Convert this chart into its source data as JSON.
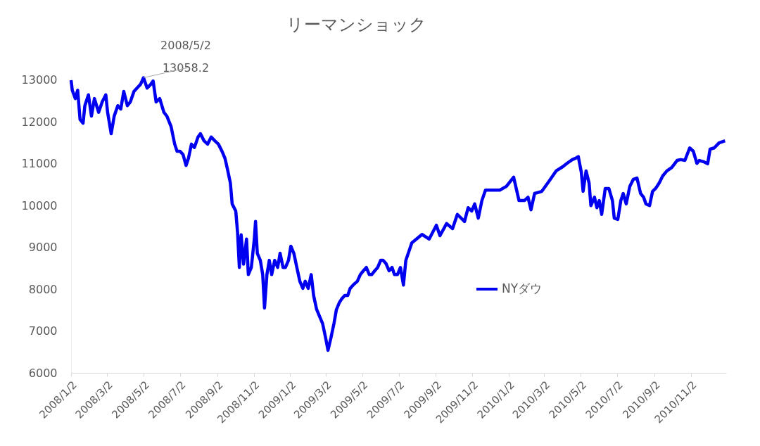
{
  "chart_data": {
    "type": "line",
    "title": "リーマンショック",
    "x": [
      "2008-01-02",
      "2008-01-04",
      "2008-01-09",
      "2008-01-13",
      "2008-01-17",
      "2008-01-22",
      "2008-01-25",
      "2008-01-31",
      "2008-02-05",
      "2008-02-10",
      "2008-02-17",
      "2008-02-23",
      "2008-02-29",
      "2008-03-03",
      "2008-03-09",
      "2008-03-14",
      "2008-03-20",
      "2008-03-25",
      "2008-03-30",
      "2008-04-05",
      "2008-04-10",
      "2008-04-16",
      "2008-04-21",
      "2008-04-27",
      "2008-05-02",
      "2008-05-08",
      "2008-05-14",
      "2008-05-18",
      "2008-05-23",
      "2008-05-29",
      "2008-06-05",
      "2008-06-10",
      "2008-06-17",
      "2008-06-23",
      "2008-06-27",
      "2008-07-02",
      "2008-07-07",
      "2008-07-12",
      "2008-07-16",
      "2008-07-21",
      "2008-07-26",
      "2008-08-01",
      "2008-08-05",
      "2008-08-11",
      "2008-08-17",
      "2008-08-23",
      "2008-08-29",
      "2008-09-04",
      "2008-09-10",
      "2008-09-15",
      "2008-09-19",
      "2008-09-24",
      "2008-09-27",
      "2008-10-03",
      "2008-10-06",
      "2008-10-09",
      "2008-10-12",
      "2008-10-16",
      "2008-10-21",
      "2008-10-24",
      "2008-10-29",
      "2008-11-03",
      "2008-11-05",
      "2008-11-08",
      "2008-11-13",
      "2008-11-17",
      "2008-11-20",
      "2008-11-24",
      "2008-11-28",
      "2008-12-02",
      "2008-12-07",
      "2008-12-12",
      "2008-12-16",
      "2008-12-21",
      "2008-12-25",
      "2008-12-30",
      "2009-01-03",
      "2009-01-08",
      "2009-01-13",
      "2009-01-18",
      "2009-01-23",
      "2009-01-27",
      "2009-02-01",
      "2009-02-06",
      "2009-02-10",
      "2009-02-15",
      "2009-02-20",
      "2009-02-25",
      "2009-03-02",
      "2009-03-06",
      "2009-03-11",
      "2009-03-16",
      "2009-03-20",
      "2009-03-25",
      "2009-03-29",
      "2009-04-03",
      "2009-04-08",
      "2009-04-12",
      "2009-04-17",
      "2009-04-24",
      "2009-04-29",
      "2009-05-04",
      "2009-05-09",
      "2009-05-14",
      "2009-05-18",
      "2009-05-23",
      "2009-05-28",
      "2009-06-02",
      "2009-06-06",
      "2009-06-11",
      "2009-06-16",
      "2009-06-21",
      "2009-06-25",
      "2009-06-30",
      "2009-07-05",
      "2009-07-10",
      "2009-07-14",
      "2009-07-24",
      "2009-08-10",
      "2009-08-22",
      "2009-09-03",
      "2009-09-09",
      "2009-09-20",
      "2009-09-30",
      "2009-10-08",
      "2009-10-20",
      "2009-10-26",
      "2009-11-01",
      "2009-11-06",
      "2009-11-12",
      "2009-11-18",
      "2009-11-24",
      "2009-12-06",
      "2009-12-18",
      "2009-12-29",
      "2010-01-10",
      "2010-01-19",
      "2010-01-28",
      "2010-02-03",
      "2010-02-08",
      "2010-02-14",
      "2010-02-26",
      "2010-03-10",
      "2010-03-22",
      "2010-04-02",
      "2010-04-09",
      "2010-04-18",
      "2010-04-23",
      "2010-04-28",
      "2010-05-03",
      "2010-05-06",
      "2010-05-11",
      "2010-05-16",
      "2010-05-19",
      "2010-05-25",
      "2010-05-29",
      "2010-06-02",
      "2010-06-06",
      "2010-06-12",
      "2010-06-18",
      "2010-06-24",
      "2010-06-27",
      "2010-07-03",
      "2010-07-08",
      "2010-07-12",
      "2010-07-17",
      "2010-07-23",
      "2010-07-29",
      "2010-08-04",
      "2010-08-10",
      "2010-08-15",
      "2010-08-19",
      "2010-08-25",
      "2010-08-30",
      "2010-09-04",
      "2010-09-10",
      "2010-09-16",
      "2010-09-23",
      "2010-10-01",
      "2010-10-10",
      "2010-10-16",
      "2010-10-23",
      "2010-10-31",
      "2010-11-06",
      "2010-11-12",
      "2010-11-16",
      "2010-11-23",
      "2010-11-30",
      "2010-12-04",
      "2010-12-11",
      "2010-12-19",
      "2010-12-29"
    ],
    "series": [
      {
        "name": "NYダウ",
        "color": "#0000f0",
        "values": [
          13000,
          12760,
          12560,
          12760,
          12060,
          11970,
          12390,
          12650,
          12140,
          12560,
          12230,
          12480,
          12650,
          12230,
          11720,
          12140,
          12390,
          12310,
          12730,
          12390,
          12480,
          12730,
          12810,
          12900,
          13058.2,
          12810,
          12900,
          12980,
          12480,
          12560,
          12230,
          12140,
          11890,
          11470,
          11300,
          11300,
          11220,
          10960,
          11130,
          11470,
          11390,
          11640,
          11720,
          11550,
          11470,
          11640,
          11550,
          11470,
          11300,
          11130,
          10880,
          10540,
          10040,
          9870,
          9360,
          8520,
          9300,
          8600,
          9200,
          8350,
          8520,
          9200,
          9620,
          8860,
          8690,
          8350,
          7550,
          8350,
          8690,
          8350,
          8690,
          8520,
          8860,
          8520,
          8520,
          8690,
          9030,
          8860,
          8520,
          8190,
          8020,
          8190,
          8020,
          8350,
          7850,
          7520,
          7350,
          7180,
          6840,
          6540,
          6840,
          7180,
          7510,
          7680,
          7770,
          7850,
          7850,
          8020,
          8100,
          8190,
          8350,
          8440,
          8520,
          8350,
          8350,
          8440,
          8520,
          8690,
          8690,
          8610,
          8440,
          8520,
          8350,
          8350,
          8520,
          8100,
          8690,
          9110,
          9310,
          9200,
          9530,
          9280,
          9570,
          9450,
          9790,
          9620,
          9950,
          9870,
          10040,
          9700,
          10120,
          10370,
          10370,
          10370,
          10460,
          10680,
          10120,
          10120,
          10200,
          9900,
          10290,
          10340,
          10580,
          10830,
          10930,
          11010,
          11100,
          11130,
          11170,
          10800,
          10340,
          10830,
          10540,
          10000,
          10200,
          9950,
          10120,
          9790,
          10410,
          10410,
          10120,
          9700,
          9670,
          10120,
          10290,
          10040,
          10460,
          10630,
          10660,
          10290,
          10200,
          10040,
          10000,
          10340,
          10410,
          10540,
          10710,
          10830,
          10910,
          11080,
          11100,
          11080,
          11380,
          11300,
          11010,
          11080,
          11050,
          11000,
          11350,
          11380,
          11500,
          11550
        ]
      }
    ],
    "xlim": [
      "2008-01-02",
      "2010-12-31"
    ],
    "xticks": [
      {
        "value": "2008-01-02",
        "label": "2008/1/2"
      },
      {
        "value": "2008-03-02",
        "label": "2008/3/2"
      },
      {
        "value": "2008-05-02",
        "label": "2008/5/2"
      },
      {
        "value": "2008-07-02",
        "label": "2008/7/2"
      },
      {
        "value": "2008-09-02",
        "label": "2008/9/2"
      },
      {
        "value": "2008-11-02",
        "label": "2008/11/2"
      },
      {
        "value": "2009-01-02",
        "label": "2009/1/2"
      },
      {
        "value": "2009-03-02",
        "label": "2009/3/2"
      },
      {
        "value": "2009-05-02",
        "label": "2009/5/2"
      },
      {
        "value": "2009-07-02",
        "label": "2009/7/2"
      },
      {
        "value": "2009-09-02",
        "label": "2009/9/2"
      },
      {
        "value": "2009-11-02",
        "label": "2009/11/2"
      },
      {
        "value": "2010-01-02",
        "label": "2010/1/2"
      },
      {
        "value": "2010-03-02",
        "label": "2010/3/2"
      },
      {
        "value": "2010-05-02",
        "label": "2010/5/2"
      },
      {
        "value": "2010-07-02",
        "label": "2010/7/2"
      },
      {
        "value": "2010-09-02",
        "label": "2010/9/2"
      },
      {
        "value": "2010-11-02",
        "label": "2010/11/2"
      }
    ],
    "ylim": [
      6000,
      13100
    ],
    "yticks": [
      6000,
      7000,
      8000,
      9000,
      10000,
      11000,
      12000,
      13000
    ],
    "grid": false,
    "legend": "bottom right",
    "marker": "none",
    "line_style": "solid",
    "annotations": [
      {
        "text": "2008/5/2\n13058.2",
        "x": "2008-05-02",
        "y": 13058.2
      }
    ]
  }
}
